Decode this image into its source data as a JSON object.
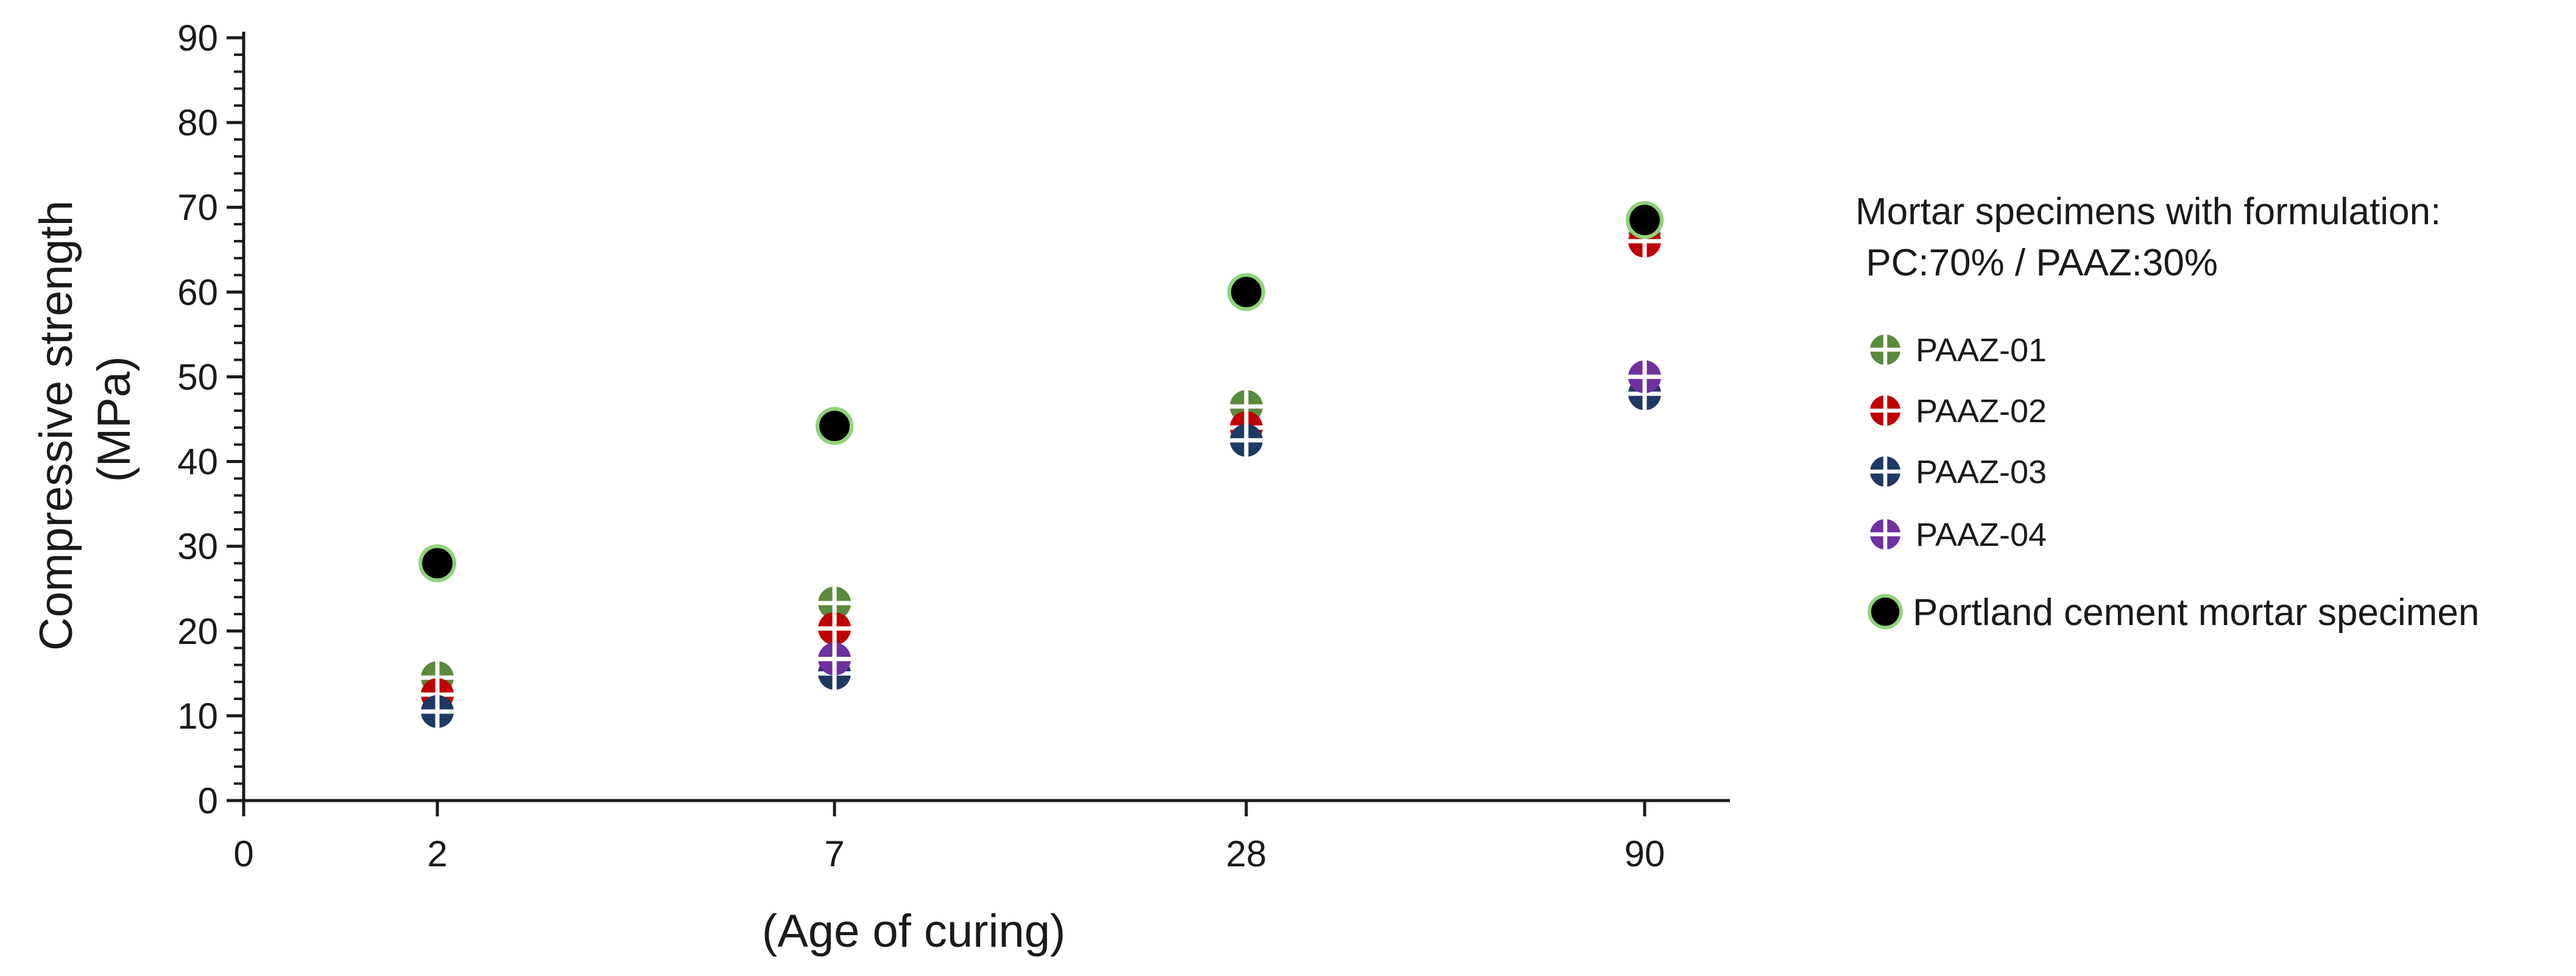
{
  "chart_data": {
    "type": "scatter",
    "title": "",
    "xlabel": "(Age of curing)",
    "ylabel_lines": [
      "Compressive strength",
      "(MPa)"
    ],
    "x_ticks": [
      "0",
      "2",
      "7",
      "28",
      "90"
    ],
    "categories": [
      "2",
      "7",
      "28",
      "90"
    ],
    "ylim": [
      0,
      90
    ],
    "y_ticks": [
      0,
      10,
      20,
      30,
      40,
      50,
      60,
      70,
      80,
      90
    ],
    "grid": false,
    "legend": {
      "placement": "right",
      "heading_lines": [
        "Mortar specimens with formulation:",
        " PC:70% / PAAZ:30%"
      ]
    },
    "series": [
      {
        "name": "PAAZ-01",
        "marker": "crossed-circle",
        "color": "#5a8a3c",
        "values": [
          14.5,
          23.3,
          46.5,
          66.5
        ]
      },
      {
        "name": "PAAZ-02",
        "marker": "crossed-circle",
        "color": "#c00000",
        "values": [
          12.5,
          20.3,
          44.0,
          66.0
        ]
      },
      {
        "name": "PAAZ-03",
        "marker": "crossed-circle",
        "color": "#1f3864",
        "values": [
          10.5,
          15.0,
          42.5,
          48.0
        ]
      },
      {
        "name": "PAAZ-04",
        "marker": "crossed-circle",
        "color": "#7030a0",
        "values": [
          null,
          16.7,
          null,
          50.0
        ]
      },
      {
        "name": "Portland cement mortar specimen",
        "marker": "filled-circle",
        "color": "#000000",
        "edge_color": "#8fd37a",
        "values": [
          28.0,
          44.2,
          60.0,
          68.5
        ]
      }
    ]
  }
}
